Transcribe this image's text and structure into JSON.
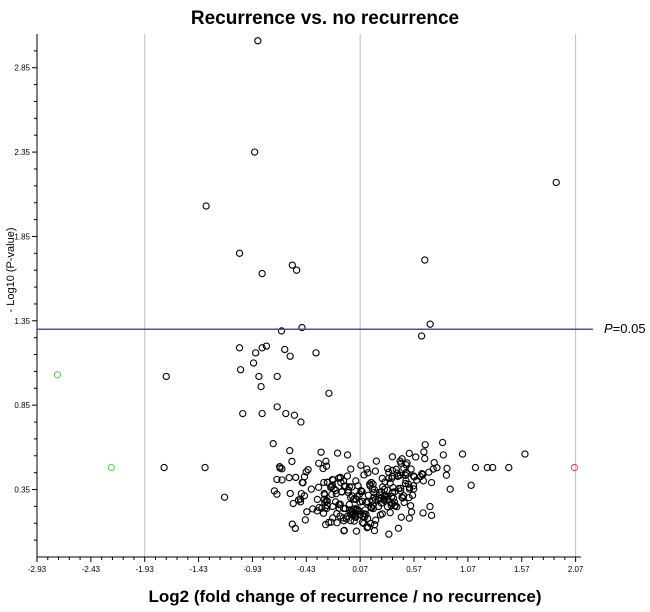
{
  "chart_data": {
    "type": "scatter",
    "title": "Recurrence vs. no recurrence",
    "xlabel": "Log2 (fold change of recurrence / no recurrence)",
    "ylabel": "- Log10 (P-value)",
    "xlim": [
      -2.93,
      2.12
    ],
    "ylim": [
      -0.05,
      3.05
    ],
    "x_ticks": [
      -2.93,
      -2.43,
      -1.93,
      -1.43,
      -0.93,
      -0.43,
      0.07,
      0.57,
      1.07,
      1.57,
      2.07
    ],
    "x_tick_labels": [
      "-2.93",
      "-2.43",
      "-1.93",
      "-1.43",
      "-0.93",
      "-0.43",
      "0.07",
      "0.57",
      "1.07",
      "1.57",
      "2.07"
    ],
    "y_ticks": [
      0.35,
      0.85,
      1.35,
      1.85,
      2.35,
      2.85
    ],
    "y_tick_labels": [
      "0.35",
      "0.85",
      "1.35",
      "1.85",
      "2.35",
      "2.85"
    ],
    "vertical_lines_x": [
      -1.93,
      0.07,
      2.07
    ],
    "threshold": {
      "y": 1.3,
      "label_prefix": "P",
      "label_suffix": "=0.05",
      "color": "#4b4bbf"
    },
    "colors": {
      "points": "#000000",
      "down_regulated": "#66cc66",
      "up_regulated": "#e05555",
      "vline": "#bdbdbd",
      "axis": "#000000"
    },
    "highlighted_points": [
      {
        "x": -2.74,
        "y": 1.03,
        "color": "#66cc66"
      },
      {
        "x": -2.24,
        "y": 0.48,
        "color": "#66cc66"
      },
      {
        "x": 2.06,
        "y": 0.48,
        "color": "#e05555"
      }
    ],
    "background_points_generated": 280,
    "points": [
      [
        -0.88,
        3.01
      ],
      [
        -0.91,
        2.35
      ],
      [
        1.89,
        2.17
      ],
      [
        -1.36,
        2.03
      ],
      [
        -1.05,
        1.75
      ],
      [
        -0.56,
        1.68
      ],
      [
        -0.52,
        1.65
      ],
      [
        -0.84,
        1.63
      ],
      [
        0.67,
        1.71
      ],
      [
        -0.66,
        1.29
      ],
      [
        -0.47,
        1.31
      ],
      [
        0.72,
        1.33
      ],
      [
        0.64,
        1.26
      ],
      [
        -1.05,
        1.19
      ],
      [
        -0.9,
        1.16
      ],
      [
        -0.84,
        1.19
      ],
      [
        -0.8,
        1.2
      ],
      [
        -0.34,
        1.16
      ],
      [
        -0.63,
        1.18
      ],
      [
        -0.58,
        1.14
      ],
      [
        -1.04,
        1.06
      ],
      [
        -0.92,
        1.1
      ],
      [
        -0.87,
        1.02
      ],
      [
        -0.85,
        0.96
      ],
      [
        -0.7,
        1.02
      ],
      [
        -1.73,
        1.02
      ],
      [
        -0.22,
        0.92
      ],
      [
        -1.75,
        0.48
      ],
      [
        -1.37,
        0.48
      ],
      [
        -1.02,
        0.8
      ],
      [
        -0.84,
        0.8
      ],
      [
        -0.7,
        0.84
      ],
      [
        -0.62,
        0.8
      ],
      [
        -0.54,
        0.79
      ],
      [
        -0.48,
        0.75
      ],
      [
        1.02,
        0.56
      ],
      [
        1.3,
        0.48
      ],
      [
        1.25,
        0.48
      ],
      [
        1.45,
        0.48
      ],
      [
        1.6,
        0.56
      ],
      [
        1.14,
        0.48
      ]
    ]
  }
}
